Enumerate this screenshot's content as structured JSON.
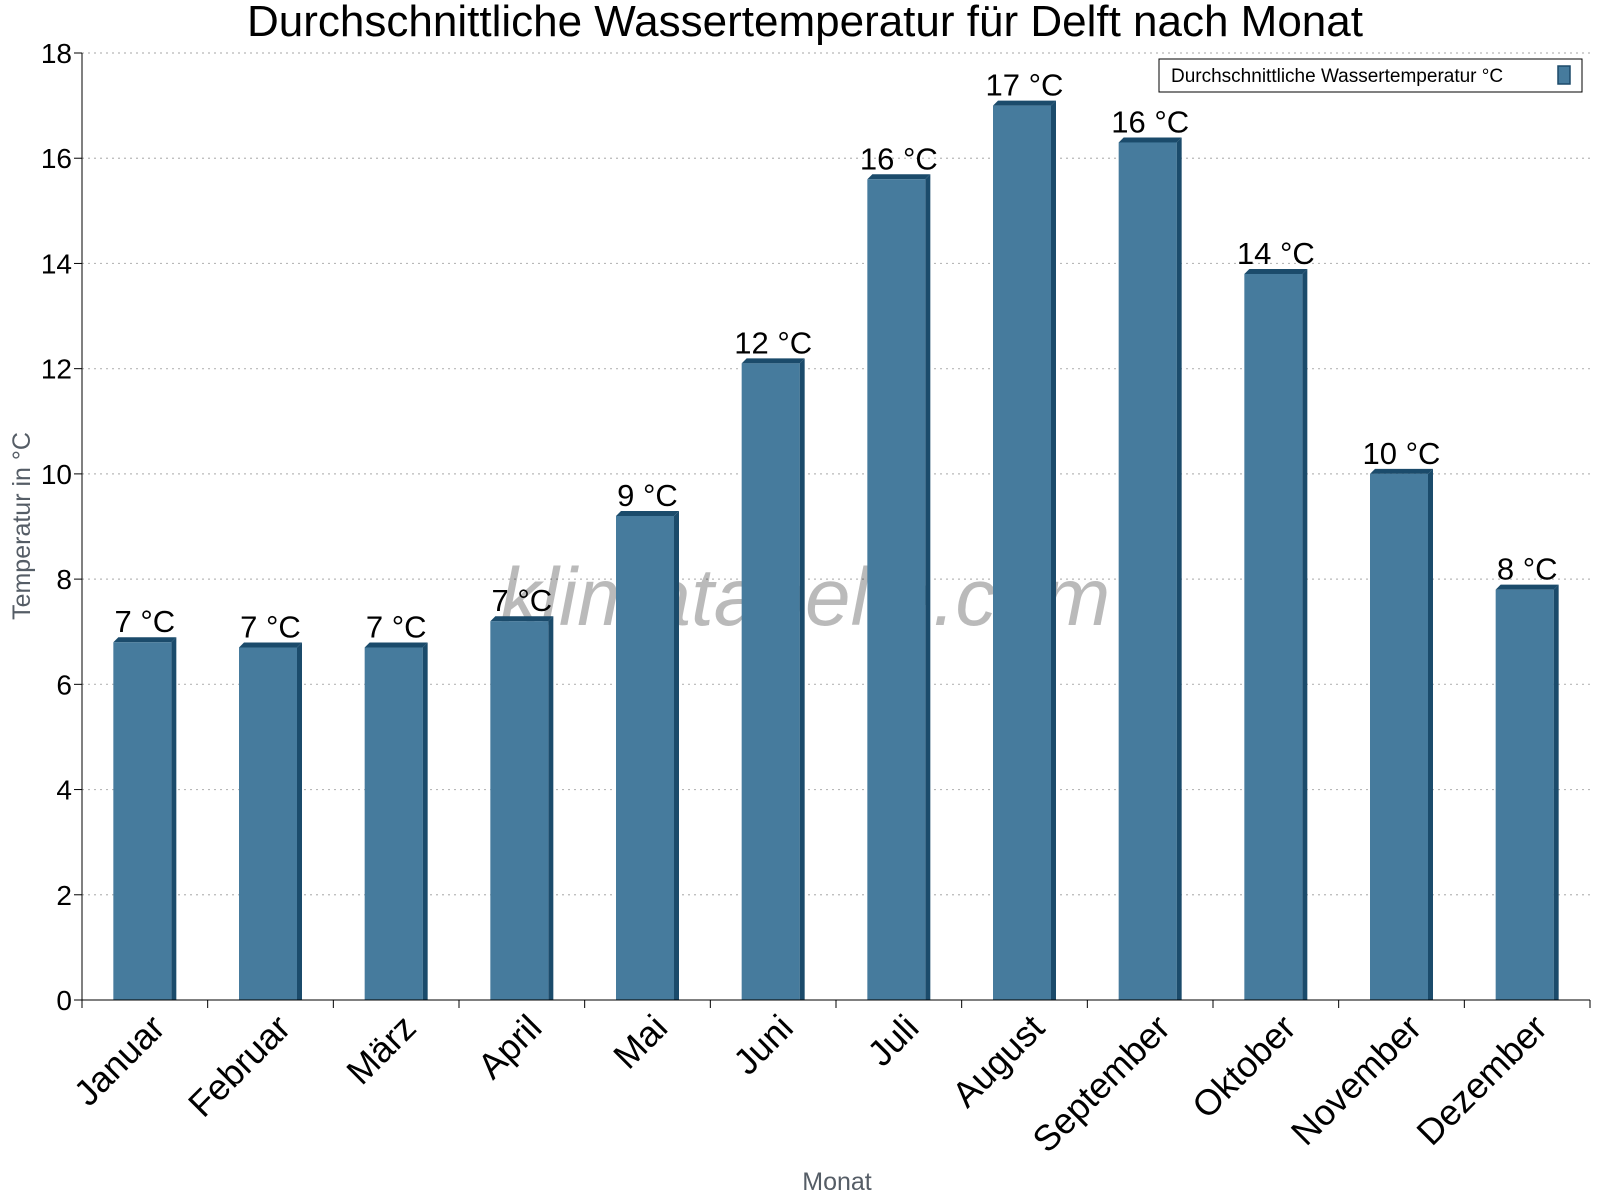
{
  "chart_data": {
    "type": "bar",
    "title": "Durchschnittliche Wassertemperatur für Delft nach Monat",
    "xlabel": "Monat",
    "ylabel": "Temperatur in °C",
    "ylim": [
      0,
      18
    ],
    "yticks": [
      0,
      2,
      4,
      6,
      8,
      10,
      12,
      14,
      16,
      18
    ],
    "grid": true,
    "legend_position": "top-right",
    "categories": [
      "Januar",
      "Februar",
      "März",
      "April",
      "Mai",
      "Juni",
      "Juli",
      "August",
      "September",
      "Oktober",
      "November",
      "Dezember"
    ],
    "series": [
      {
        "name": "Durchschnittliche Wassertemperatur °C",
        "color": "#467b9d",
        "values": [
          6.8,
          6.7,
          6.7,
          7.2,
          9.2,
          12.1,
          15.6,
          17.0,
          16.3,
          13.8,
          10.0,
          7.8
        ],
        "labels": [
          "7 °C",
          "7 °C",
          "7 °C",
          "7 °C",
          "9 °C",
          "12 °C",
          "16 °C",
          "17 °C",
          "16 °C",
          "14 °C",
          "10 °C",
          "8 °C"
        ]
      }
    ]
  },
  "watermark": "klimatabelle.com"
}
